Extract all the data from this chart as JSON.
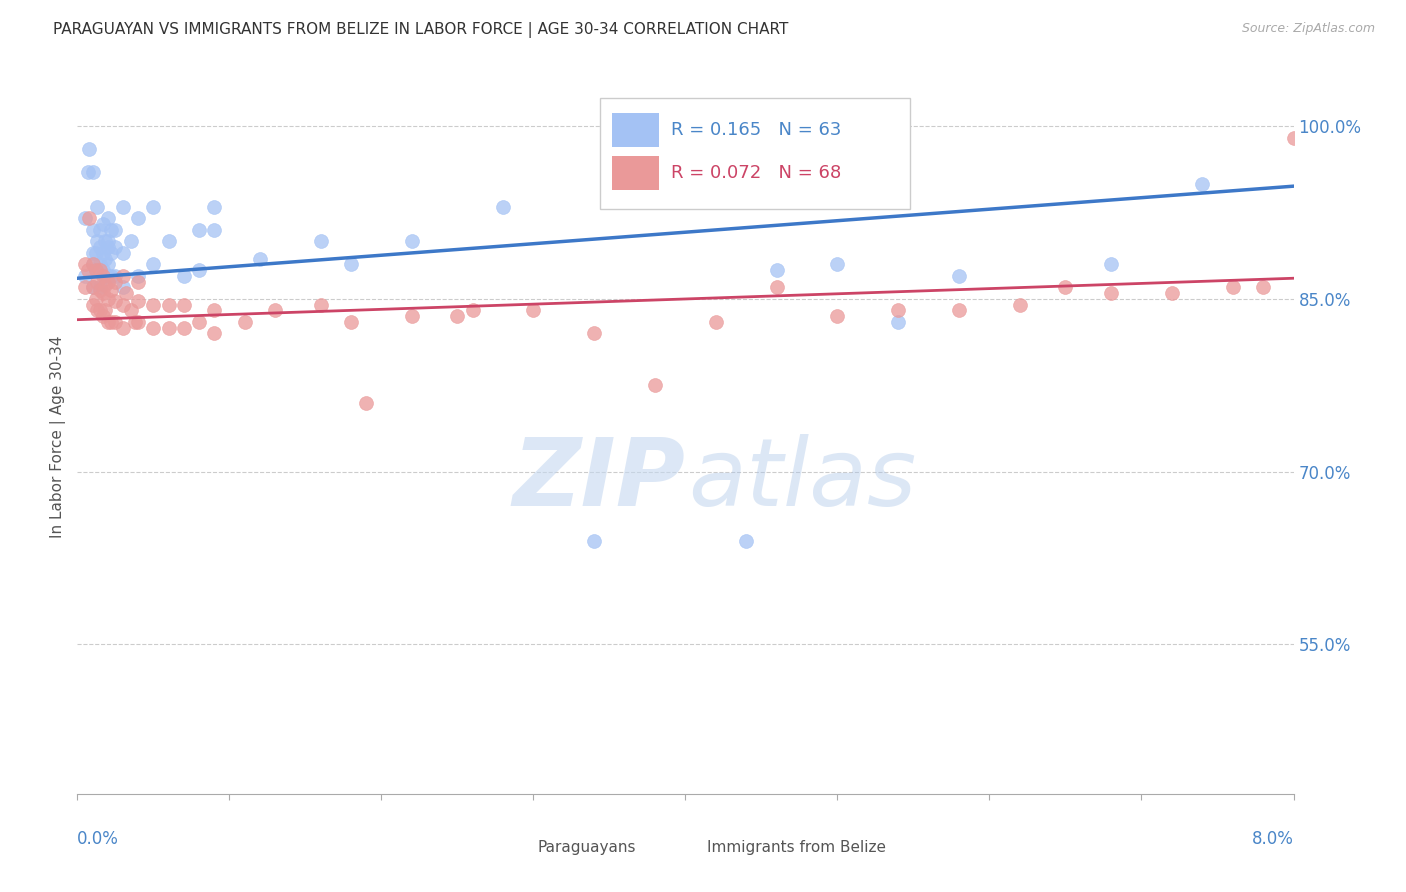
{
  "title": "PARAGUAYAN VS IMMIGRANTS FROM BELIZE IN LABOR FORCE | AGE 30-34 CORRELATION CHART",
  "source": "Source: ZipAtlas.com",
  "ylabel": "In Labor Force | Age 30-34",
  "xmin": 0.0,
  "xmax": 0.08,
  "ymin": 0.42,
  "ymax": 1.04,
  "yticks": [
    0.55,
    0.7,
    0.85,
    1.0
  ],
  "ytick_labels": [
    "55.0%",
    "70.0%",
    "85.0%",
    "100.0%"
  ],
  "blue_R": 0.165,
  "blue_N": 63,
  "pink_R": 0.072,
  "pink_N": 68,
  "blue_color": "#a4c2f4",
  "pink_color": "#ea9999",
  "blue_line_color": "#3d78c8",
  "pink_line_color": "#cc4466",
  "axis_color": "#4a86c8",
  "grid_color": "#cccccc",
  "blue_trend_x0": 0.0,
  "blue_trend_y0": 0.868,
  "blue_trend_x1": 0.08,
  "blue_trend_y1": 0.948,
  "pink_trend_x0": 0.0,
  "pink_trend_y0": 0.832,
  "pink_trend_x1": 0.08,
  "pink_trend_y1": 0.868,
  "blue_x": [
    0.0005,
    0.0005,
    0.0007,
    0.0008,
    0.001,
    0.001,
    0.001,
    0.001,
    0.001,
    0.0012,
    0.0012,
    0.0013,
    0.0013,
    0.0013,
    0.0015,
    0.0015,
    0.0015,
    0.0015,
    0.0015,
    0.0017,
    0.0017,
    0.0017,
    0.0018,
    0.0018,
    0.0018,
    0.002,
    0.002,
    0.002,
    0.002,
    0.002,
    0.0022,
    0.0022,
    0.0022,
    0.0025,
    0.0025,
    0.0025,
    0.003,
    0.003,
    0.003,
    0.0035,
    0.004,
    0.004,
    0.005,
    0.005,
    0.006,
    0.007,
    0.008,
    0.008,
    0.009,
    0.009,
    0.012,
    0.016,
    0.018,
    0.022,
    0.028,
    0.034,
    0.044,
    0.046,
    0.05,
    0.054,
    0.058,
    0.068,
    0.074
  ],
  "blue_y": [
    0.87,
    0.92,
    0.96,
    0.98,
    0.86,
    0.88,
    0.89,
    0.91,
    0.96,
    0.875,
    0.89,
    0.875,
    0.9,
    0.93,
    0.86,
    0.875,
    0.88,
    0.895,
    0.91,
    0.875,
    0.89,
    0.915,
    0.87,
    0.885,
    0.9,
    0.87,
    0.88,
    0.895,
    0.9,
    0.92,
    0.87,
    0.89,
    0.91,
    0.87,
    0.895,
    0.91,
    0.86,
    0.89,
    0.93,
    0.9,
    0.87,
    0.92,
    0.88,
    0.93,
    0.9,
    0.87,
    0.875,
    0.91,
    0.91,
    0.93,
    0.885,
    0.9,
    0.88,
    0.9,
    0.93,
    0.64,
    0.64,
    0.875,
    0.88,
    0.83,
    0.87,
    0.88,
    0.95
  ],
  "pink_x": [
    0.0005,
    0.0005,
    0.0007,
    0.0008,
    0.001,
    0.001,
    0.001,
    0.0012,
    0.0012,
    0.0013,
    0.0013,
    0.0015,
    0.0015,
    0.0015,
    0.0017,
    0.0017,
    0.0017,
    0.0018,
    0.0018,
    0.002,
    0.002,
    0.002,
    0.0022,
    0.0022,
    0.0025,
    0.0025,
    0.0025,
    0.003,
    0.003,
    0.003,
    0.0032,
    0.0035,
    0.0038,
    0.004,
    0.004,
    0.004,
    0.005,
    0.005,
    0.006,
    0.006,
    0.007,
    0.007,
    0.008,
    0.009,
    0.009,
    0.011,
    0.013,
    0.016,
    0.018,
    0.019,
    0.022,
    0.025,
    0.026,
    0.03,
    0.034,
    0.038,
    0.042,
    0.046,
    0.05,
    0.054,
    0.058,
    0.062,
    0.065,
    0.068,
    0.072,
    0.076,
    0.078,
    0.08
  ],
  "pink_y": [
    0.86,
    0.88,
    0.875,
    0.92,
    0.845,
    0.86,
    0.88,
    0.85,
    0.875,
    0.84,
    0.865,
    0.84,
    0.858,
    0.875,
    0.835,
    0.855,
    0.87,
    0.84,
    0.862,
    0.83,
    0.85,
    0.865,
    0.83,
    0.858,
    0.83,
    0.848,
    0.865,
    0.825,
    0.845,
    0.87,
    0.855,
    0.84,
    0.83,
    0.83,
    0.848,
    0.865,
    0.825,
    0.845,
    0.825,
    0.845,
    0.825,
    0.845,
    0.83,
    0.82,
    0.84,
    0.83,
    0.84,
    0.845,
    0.83,
    0.76,
    0.835,
    0.835,
    0.84,
    0.84,
    0.82,
    0.775,
    0.83,
    0.86,
    0.835,
    0.84,
    0.84,
    0.845,
    0.86,
    0.855,
    0.855,
    0.86,
    0.86,
    0.99
  ]
}
